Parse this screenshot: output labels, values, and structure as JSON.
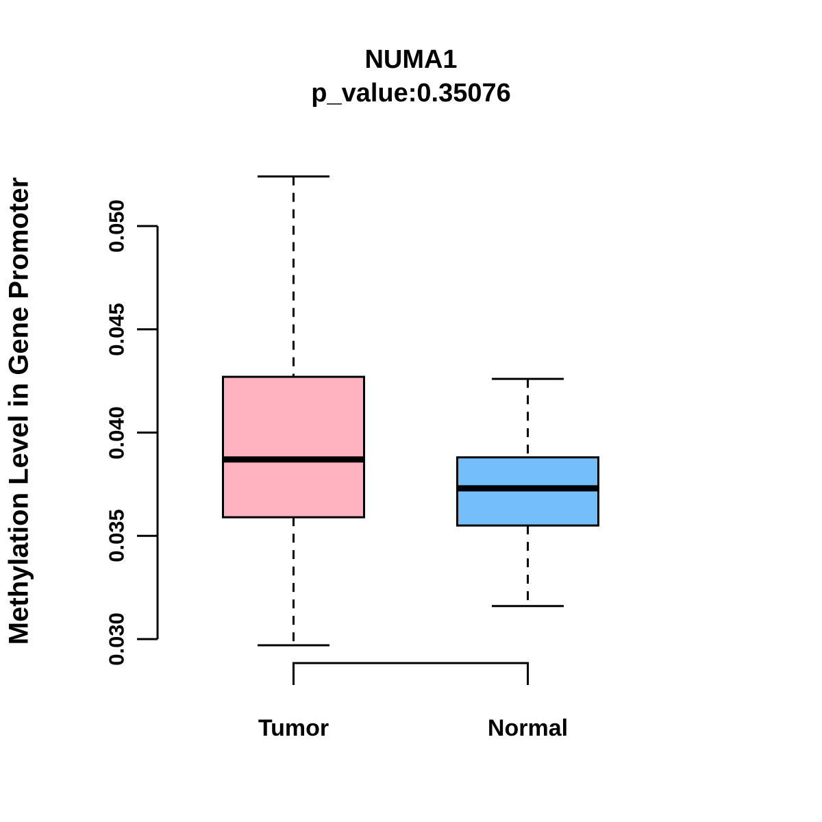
{
  "figure": {
    "title": "NUMA1",
    "subtitle": "p_value:0.35076",
    "ylabel": "Methylation Level in Gene Promoter"
  },
  "chart_data": {
    "type": "boxplot",
    "title": "NUMA1",
    "subtitle": "p_value:0.35076",
    "ylabel": "Methylation Level in Gene Promoter",
    "xlabel": "",
    "categories": [
      "Tumor",
      "Normal"
    ],
    "yticks": [
      {
        "value": 0.03,
        "label": "0.030"
      },
      {
        "value": 0.035,
        "label": "0.035"
      },
      {
        "value": 0.04,
        "label": "0.040"
      },
      {
        "value": 0.045,
        "label": "0.045"
      },
      {
        "value": 0.05,
        "label": "0.050"
      }
    ],
    "ylim_ticks": [
      0.03,
      0.05
    ],
    "grid": false,
    "legend": "none",
    "series": [
      {
        "name": "Tumor",
        "color": "#FFB3C1",
        "whisker_low": 0.0297,
        "q1": 0.0359,
        "median": 0.0387,
        "q3": 0.0427,
        "whisker_high": 0.0524
      },
      {
        "name": "Normal",
        "color": "#74BFFA",
        "whisker_low": 0.0316,
        "q1": 0.0355,
        "median": 0.0373,
        "q3": 0.0388,
        "whisker_high": 0.0426
      }
    ],
    "line_color": "#000000",
    "background": "#FFFFFF"
  }
}
